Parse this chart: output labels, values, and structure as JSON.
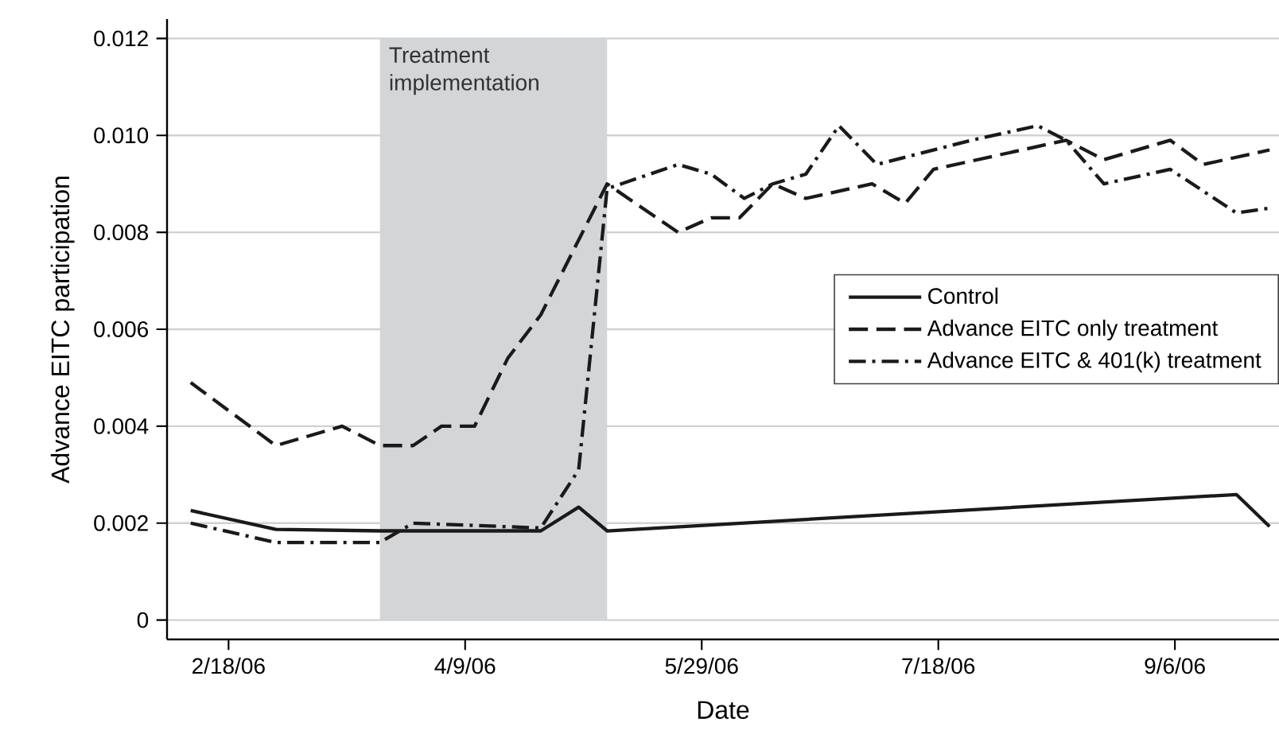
{
  "chart_data": {
    "type": "line",
    "xlabel": "Date",
    "ylabel": "Advance EITC participation",
    "xlim": [
      "2006-02-05",
      "2006-09-28"
    ],
    "xticks": [
      {
        "value": "2006-02-18",
        "label": "2/18/06"
      },
      {
        "value": "2006-04-09",
        "label": "4/9/06"
      },
      {
        "value": "2006-05-29",
        "label": "5/29/06"
      },
      {
        "value": "2006-07-18",
        "label": "7/18/06"
      },
      {
        "value": "2006-09-06",
        "label": "9/6/06"
      }
    ],
    "ylim": [
      -0.0004,
      0.0124
    ],
    "yticks": [
      0,
      0.002,
      0.004,
      0.006,
      0.008,
      {
        "value": 0.01,
        "label": "0.010"
      },
      0.012
    ],
    "grid": "y",
    "legend": "right",
    "marker": "none",
    "bands": [
      {
        "axis": "x",
        "from": "2006-03-22",
        "to": "2006-05-09",
        "label": "Treatment implementation",
        "color": "#d4d5d7"
      }
    ],
    "series": [
      {
        "name": "Control",
        "color": "#1a1a1a",
        "line_style": "solid",
        "x": [
          "2006-02-10",
          "2006-02-28",
          "2006-03-22",
          "2006-04-25",
          "2006-05-03",
          "2006-05-09",
          "2006-05-25",
          "2006-09-19",
          "2006-09-26"
        ],
        "values": [
          0.00226,
          0.00187,
          0.00184,
          0.00184,
          0.00233,
          0.00184,
          0.00193,
          0.00259,
          0.00193
        ]
      },
      {
        "name": "Advance EITC only treatment",
        "color": "#1a1a1a",
        "line_style": "dashed",
        "x": [
          "2006-02-10",
          "2006-02-28",
          "2006-03-14",
          "2006-03-22",
          "2006-03-29",
          "2006-04-04",
          "2006-04-11",
          "2006-04-18",
          "2006-04-25",
          "2006-05-09",
          "2006-05-24",
          "2006-05-31",
          "2006-06-06",
          "2006-06-13",
          "2006-06-20",
          "2006-07-04",
          "2006-07-11",
          "2006-07-17",
          "2006-08-14",
          "2006-08-22",
          "2006-09-05",
          "2006-09-12",
          "2006-09-26"
        ],
        "values": [
          0.0049,
          0.0036,
          0.004,
          0.0036,
          0.0036,
          0.004,
          0.004,
          0.0054,
          0.0063,
          0.009,
          0.008,
          0.0083,
          0.0083,
          0.009,
          0.0087,
          0.009,
          0.0086,
          0.0093,
          0.0099,
          0.0095,
          0.0099,
          0.0094,
          0.0097
        ]
      },
      {
        "name": "Advance EITC & 401(k) treatment",
        "color": "#1a1a1a",
        "line_style": "dashdot",
        "x": [
          "2006-02-10",
          "2006-02-28",
          "2006-03-22",
          "2006-03-29",
          "2006-04-25",
          "2006-05-03",
          "2006-05-09",
          "2006-05-24",
          "2006-05-31",
          "2006-06-07",
          "2006-06-13",
          "2006-06-20",
          "2006-06-27",
          "2006-07-05",
          "2006-07-25",
          "2006-08-08",
          "2006-08-14",
          "2006-08-22",
          "2006-09-05",
          "2006-09-19",
          "2006-09-26"
        ],
        "values": [
          0.002,
          0.0016,
          0.0016,
          0.002,
          0.0019,
          0.0031,
          0.0089,
          0.0094,
          0.0092,
          0.0087,
          0.009,
          0.0092,
          0.0102,
          0.0094,
          0.0099,
          0.0102,
          0.0099,
          0.009,
          0.0093,
          0.0084,
          0.0085
        ]
      }
    ]
  }
}
